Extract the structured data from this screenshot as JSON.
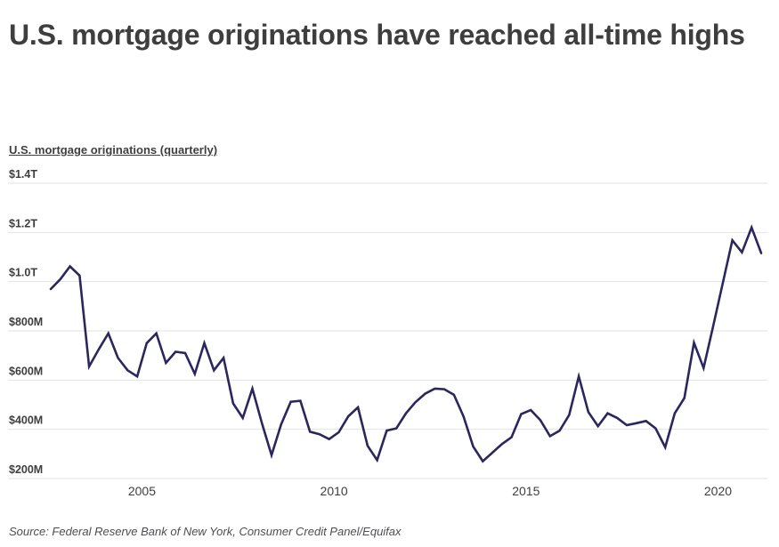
{
  "header": {
    "title": "U.S. mortgage originations have reached all-time highs"
  },
  "footer": {
    "source": "Source:  Federal Reserve Bank of New York, Consumer Credit Panel/Equifax"
  },
  "colors": {
    "line": "#2b265c",
    "grid": "#e2e2e2",
    "title_text": "#3e3e3e",
    "tick_text": "#3e3e3e",
    "source_text": "#4e4e52",
    "background": "#ffffff"
  },
  "chart_data": {
    "type": "line",
    "title": "U.S. mortgage originations (quarterly)",
    "series_name": "U.S. mortgage originations",
    "unit": "billions of dollars (axis labeled $T / $M as shown)",
    "grid": true,
    "legend": "none",
    "ylim": [
      200,
      1400
    ],
    "y_ticks": [
      {
        "value": 1400,
        "label": "$1.4T"
      },
      {
        "value": 1200,
        "label": "$1.2T"
      },
      {
        "value": 1000,
        "label": "$1.0T"
      },
      {
        "value": 800,
        "label": "$800M"
      },
      {
        "value": 600,
        "label": "$600M"
      },
      {
        "value": 400,
        "label": "$400M"
      },
      {
        "value": 200,
        "label": "$200M"
      }
    ],
    "x_ticks": [
      {
        "year": 2005,
        "label": "2005"
      },
      {
        "year": 2010,
        "label": "2010"
      },
      {
        "year": 2015,
        "label": "2015"
      },
      {
        "year": 2020,
        "label": "2020"
      }
    ],
    "points": [
      [
        "2003Q1",
        970
      ],
      [
        "2003Q2",
        1010
      ],
      [
        "2003Q3",
        1062
      ],
      [
        "2003Q4",
        1025
      ],
      [
        "2004Q1",
        655
      ],
      [
        "2004Q2",
        725
      ],
      [
        "2004Q3",
        790
      ],
      [
        "2004Q4",
        690
      ],
      [
        "2005Q1",
        640
      ],
      [
        "2005Q2",
        615
      ],
      [
        "2005Q3",
        750
      ],
      [
        "2005Q4",
        790
      ],
      [
        "2006Q1",
        670
      ],
      [
        "2006Q2",
        715
      ],
      [
        "2006Q3",
        710
      ],
      [
        "2006Q4",
        625
      ],
      [
        "2007Q1",
        750
      ],
      [
        "2007Q2",
        640
      ],
      [
        "2007Q3",
        690
      ],
      [
        "2007Q4",
        505
      ],
      [
        "2008Q1",
        446
      ],
      [
        "2008Q2",
        565
      ],
      [
        "2008Q3",
        425
      ],
      [
        "2008Q4",
        295
      ],
      [
        "2009Q1",
        420
      ],
      [
        "2009Q2",
        512
      ],
      [
        "2009Q3",
        516
      ],
      [
        "2009Q4",
        390
      ],
      [
        "2010Q1",
        380
      ],
      [
        "2010Q2",
        360
      ],
      [
        "2010Q3",
        388
      ],
      [
        "2010Q4",
        453
      ],
      [
        "2011Q1",
        489
      ],
      [
        "2011Q2",
        333
      ],
      [
        "2011Q3",
        275
      ],
      [
        "2011Q4",
        395
      ],
      [
        "2012Q1",
        404
      ],
      [
        "2012Q2",
        465
      ],
      [
        "2012Q3",
        511
      ],
      [
        "2012Q4",
        545
      ],
      [
        "2013Q1",
        565
      ],
      [
        "2013Q2",
        563
      ],
      [
        "2013Q3",
        540
      ],
      [
        "2013Q4",
        452
      ],
      [
        "2014Q1",
        330
      ],
      [
        "2014Q2",
        270
      ],
      [
        "2014Q3",
        305
      ],
      [
        "2014Q4",
        340
      ],
      [
        "2015Q1",
        368
      ],
      [
        "2015Q2",
        462
      ],
      [
        "2015Q3",
        478
      ],
      [
        "2015Q4",
        437
      ],
      [
        "2016Q1",
        372
      ],
      [
        "2016Q2",
        394
      ],
      [
        "2016Q3",
        458
      ],
      [
        "2016Q4",
        615
      ],
      [
        "2017Q1",
        470
      ],
      [
        "2017Q2",
        413
      ],
      [
        "2017Q3",
        465
      ],
      [
        "2017Q4",
        446
      ],
      [
        "2018Q1",
        417
      ],
      [
        "2018Q2",
        425
      ],
      [
        "2018Q3",
        434
      ],
      [
        "2018Q4",
        404
      ],
      [
        "2019Q1",
        327
      ],
      [
        "2019Q2",
        465
      ],
      [
        "2019Q3",
        527
      ],
      [
        "2019Q4",
        752
      ],
      [
        "2020Q1",
        649
      ],
      [
        "2020Q2",
        820
      ],
      [
        "2020Q3",
        995
      ],
      [
        "2020Q4",
        1168
      ],
      [
        "2021Q1",
        1119
      ],
      [
        "2021Q2",
        1220
      ],
      [
        "2021Q3",
        1116
      ]
    ]
  }
}
